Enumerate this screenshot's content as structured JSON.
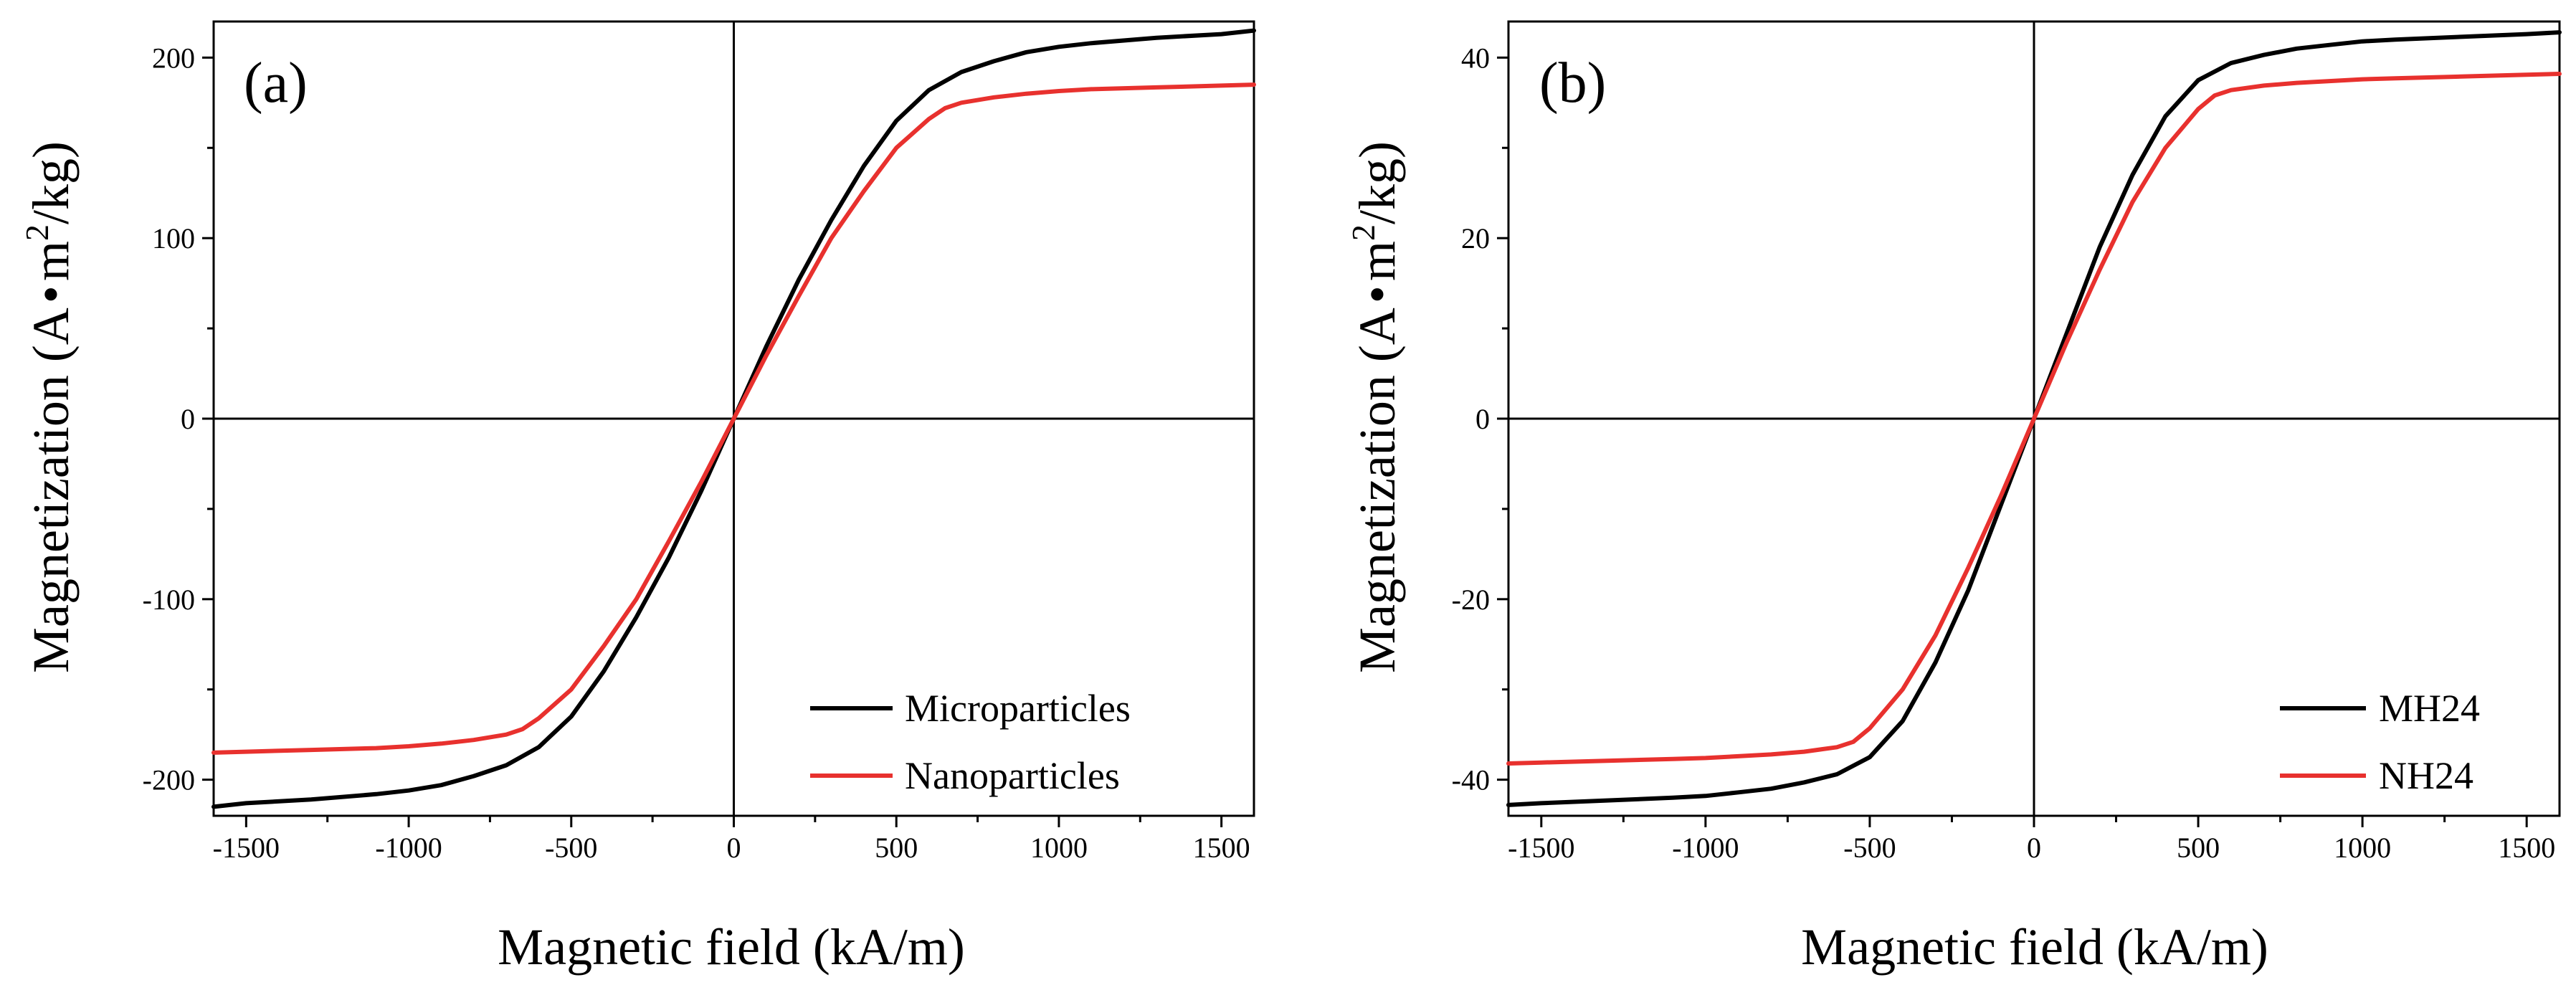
{
  "chart_data": [
    {
      "type": "line",
      "panel_label": "(a)",
      "xlabel": "Magnetic field (kA/m)",
      "ylabel_main": "Magnetization (A",
      "ylabel_dot": "•",
      "ylabel_unit": "m",
      "ylabel_sup": "2",
      "ylabel_tail": "/kg)",
      "xlim": [
        -1600,
        1600
      ],
      "ylim": [
        -220,
        220
      ],
      "xticks": [
        -1500,
        -1000,
        -500,
        0,
        500,
        1000,
        1500
      ],
      "xtick_labels": [
        "-1500",
        "-1000",
        "-500",
        "0",
        "500",
        "1000",
        "1500"
      ],
      "yticks": [
        -200,
        -100,
        0,
        100,
        200
      ],
      "ytick_labels": [
        "-200",
        "-100",
        "0",
        "100",
        "200"
      ],
      "legend_position": "bottom-right",
      "series": [
        {
          "name": "Microparticles",
          "color": "#000000",
          "x": [
            -1600,
            -1500,
            -1300,
            -1100,
            -1000,
            -900,
            -800,
            -700,
            -600,
            -500,
            -400,
            -300,
            -200,
            -100,
            0,
            100,
            200,
            300,
            400,
            500,
            600,
            700,
            800,
            900,
            1000,
            1100,
            1300,
            1500,
            1600
          ],
          "y": [
            -215,
            -213,
            -211,
            -208,
            -206,
            -203,
            -198,
            -192,
            -182,
            -165,
            -140,
            -110,
            -77,
            -40,
            0,
            40,
            77,
            110,
            140,
            165,
            182,
            192,
            198,
            203,
            206,
            208,
            211,
            213,
            215
          ]
        },
        {
          "name": "Nanoparticles",
          "color": "#e8312e",
          "x": [
            -1600,
            -1500,
            -1300,
            -1100,
            -1000,
            -900,
            -800,
            -700,
            -650,
            -600,
            -500,
            -400,
            -300,
            -200,
            -100,
            0,
            100,
            200,
            300,
            400,
            500,
            600,
            650,
            700,
            800,
            900,
            1000,
            1100,
            1300,
            1500,
            1600
          ],
          "y": [
            -185,
            -184.5,
            -183.5,
            -182.5,
            -181.5,
            -180,
            -178,
            -175,
            -172,
            -166,
            -150,
            -126,
            -100,
            -68,
            -35,
            0,
            35,
            68,
            100,
            126,
            150,
            166,
            172,
            175,
            178,
            180,
            181.5,
            182.5,
            183.5,
            184.5,
            185
          ]
        }
      ]
    },
    {
      "type": "line",
      "panel_label": "(b)",
      "xlabel": "Magnetic field (kA/m)",
      "ylabel_main": "Magnetization (A",
      "ylabel_dot": "•",
      "ylabel_unit": "m",
      "ylabel_sup": "2",
      "ylabel_tail": "/kg)",
      "xlim": [
        -1600,
        1600
      ],
      "ylim": [
        -44,
        44
      ],
      "xticks": [
        -1500,
        -1000,
        -500,
        0,
        500,
        1000,
        1500
      ],
      "xtick_labels": [
        "-1500",
        "-1000",
        "-500",
        "0",
        "500",
        "1000",
        "1500"
      ],
      "yticks": [
        -40,
        -20,
        0,
        20,
        40
      ],
      "ytick_labels": [
        "-40",
        "-20",
        "0",
        "20",
        "40"
      ],
      "legend_position": "bottom-right",
      "series": [
        {
          "name": "MH24",
          "color": "#000000",
          "x": [
            -1600,
            -1500,
            -1300,
            -1100,
            -1000,
            -900,
            -800,
            -700,
            -600,
            -500,
            -400,
            -300,
            -200,
            -100,
            0,
            100,
            200,
            300,
            400,
            500,
            600,
            700,
            800,
            900,
            1000,
            1100,
            1300,
            1500,
            1600
          ],
          "y": [
            -42.8,
            -42.6,
            -42.3,
            -42,
            -41.8,
            -41.4,
            -41,
            -40.3,
            -39.4,
            -37.5,
            -33.5,
            -27,
            -19,
            -9.5,
            0,
            9.5,
            19,
            27,
            33.5,
            37.5,
            39.4,
            40.3,
            41,
            41.4,
            41.8,
            42,
            42.3,
            42.6,
            42.8
          ]
        },
        {
          "name": "NH24",
          "color": "#e8312e",
          "x": [
            -1600,
            -1500,
            -1300,
            -1100,
            -1000,
            -900,
            -800,
            -700,
            -600,
            -550,
            -500,
            -400,
            -300,
            -200,
            -100,
            0,
            100,
            200,
            300,
            400,
            500,
            550,
            600,
            700,
            800,
            900,
            1000,
            1100,
            1300,
            1500,
            1600
          ],
          "y": [
            -38.2,
            -38.1,
            -37.9,
            -37.7,
            -37.6,
            -37.4,
            -37.2,
            -36.9,
            -36.4,
            -35.8,
            -34.3,
            -30,
            -24,
            -16.5,
            -8.5,
            0,
            8.5,
            16.5,
            24,
            30,
            34.3,
            35.8,
            36.4,
            36.9,
            37.2,
            37.4,
            37.6,
            37.7,
            37.9,
            38.1,
            38.2
          ]
        }
      ]
    }
  ]
}
